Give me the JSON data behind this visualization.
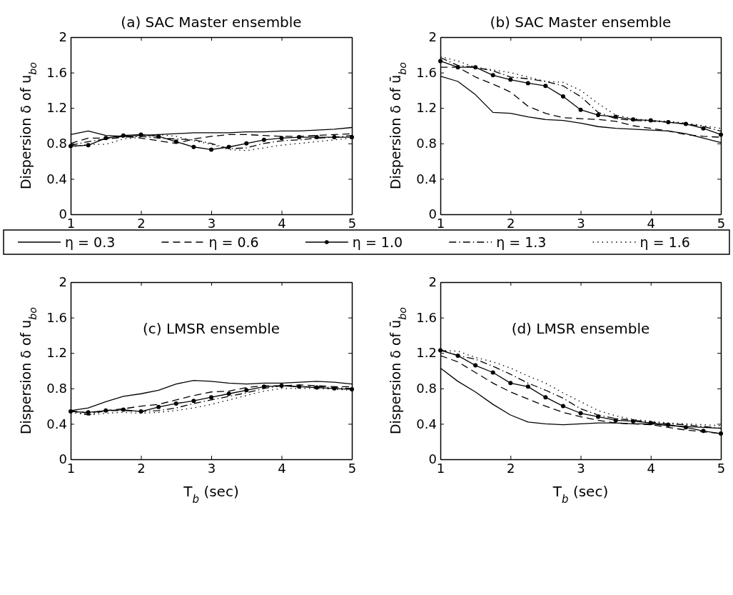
{
  "chart_data": [
    {
      "type": "line",
      "title": "(a) SAC Master ensemble",
      "ylabel": "Dispersion δ of u$_{bo}$",
      "x": [
        1,
        1.25,
        1.5,
        1.75,
        2,
        2.25,
        2.5,
        2.75,
        3,
        3.25,
        3.5,
        3.75,
        4,
        4.25,
        4.5,
        4.75,
        5
      ],
      "xlim": [
        1,
        5
      ],
      "xticks": [
        1,
        2,
        3,
        4,
        5
      ],
      "ylim": [
        0,
        2
      ],
      "yticks": [
        0,
        0.4,
        0.8,
        1.2,
        1.6,
        2
      ],
      "legend": "bottom",
      "grid": false,
      "series": [
        {
          "name": "η = 0.3",
          "color": "#000000",
          "line_style": "solid",
          "marker": "none",
          "values": [
            0.9,
            0.94,
            0.89,
            0.88,
            0.89,
            0.9,
            0.91,
            0.92,
            0.92,
            0.92,
            0.93,
            0.93,
            0.94,
            0.94,
            0.95,
            0.96,
            0.98
          ]
        },
        {
          "name": "η = 0.6",
          "color": "#000000",
          "line_style": "dashed",
          "marker": "none",
          "values": [
            0.8,
            0.86,
            0.86,
            0.88,
            0.86,
            0.83,
            0.8,
            0.85,
            0.88,
            0.9,
            0.9,
            0.89,
            0.88,
            0.88,
            0.89,
            0.9,
            0.91
          ]
        },
        {
          "name": "η = 1.0",
          "color": "#000000",
          "line_style": "solid",
          "marker": "circle",
          "values": [
            0.77,
            0.78,
            0.86,
            0.89,
            0.9,
            0.88,
            0.82,
            0.76,
            0.73,
            0.76,
            0.8,
            0.84,
            0.86,
            0.87,
            0.87,
            0.87,
            0.87
          ]
        },
        {
          "name": "η = 1.3",
          "color": "#000000",
          "line_style": "dashdot",
          "marker": "none",
          "values": [
            0.78,
            0.82,
            0.85,
            0.87,
            0.88,
            0.86,
            0.85,
            0.84,
            0.8,
            0.74,
            0.75,
            0.8,
            0.83,
            0.84,
            0.86,
            0.87,
            0.89
          ]
        },
        {
          "name": "η = 1.6",
          "color": "#000000",
          "line_style": "dotted",
          "marker": "none",
          "values": [
            0.76,
            0.79,
            0.79,
            0.85,
            0.87,
            0.9,
            0.88,
            0.83,
            0.79,
            0.73,
            0.72,
            0.75,
            0.78,
            0.8,
            0.82,
            0.84,
            0.86
          ]
        }
      ]
    },
    {
      "type": "line",
      "title": "(b) SAC Master ensemble",
      "ylabel": "Dispersion δ of ū$_{bo}$",
      "x": [
        1,
        1.25,
        1.5,
        1.75,
        2,
        2.25,
        2.5,
        2.75,
        3,
        3.25,
        3.5,
        3.75,
        4,
        4.25,
        4.5,
        4.75,
        5
      ],
      "xlim": [
        1,
        5
      ],
      "xticks": [
        1,
        2,
        3,
        4,
        5
      ],
      "ylim": [
        0,
        2
      ],
      "yticks": [
        0,
        0.4,
        0.8,
        1.2,
        1.6,
        2
      ],
      "grid": false,
      "series": [
        {
          "color": "#000000",
          "line_style": "solid",
          "marker": "none",
          "values": [
            1.56,
            1.5,
            1.35,
            1.15,
            1.14,
            1.1,
            1.07,
            1.06,
            1.03,
            0.99,
            0.97,
            0.96,
            0.95,
            0.94,
            0.91,
            0.86,
            0.81
          ]
        },
        {
          "color": "#000000",
          "line_style": "dashed",
          "marker": "none",
          "values": [
            1.66,
            1.66,
            1.55,
            1.47,
            1.38,
            1.22,
            1.14,
            1.09,
            1.08,
            1.07,
            1.05,
            1.0,
            0.97,
            0.94,
            0.9,
            0.88,
            0.87
          ]
        },
        {
          "color": "#000000",
          "line_style": "solid",
          "marker": "circle",
          "values": [
            1.73,
            1.66,
            1.66,
            1.57,
            1.52,
            1.48,
            1.45,
            1.33,
            1.18,
            1.12,
            1.1,
            1.07,
            1.06,
            1.04,
            1.02,
            0.97,
            0.9
          ]
        },
        {
          "color": "#000000",
          "line_style": "dashdot",
          "marker": "none",
          "values": [
            1.77,
            1.68,
            1.66,
            1.62,
            1.55,
            1.53,
            1.5,
            1.45,
            1.33,
            1.15,
            1.08,
            1.06,
            1.05,
            1.04,
            1.02,
            0.99,
            0.94
          ]
        },
        {
          "color": "#000000",
          "line_style": "dotted",
          "marker": "none",
          "values": [
            1.78,
            1.73,
            1.66,
            1.63,
            1.6,
            1.55,
            1.5,
            1.49,
            1.4,
            1.25,
            1.12,
            1.08,
            1.06,
            1.05,
            1.03,
            1.0,
            0.97
          ]
        }
      ]
    },
    {
      "type": "line",
      "title": "(c) LMSR ensemble",
      "ylabel": "Dispersion δ of u$_{bo}$",
      "xlabel": "T$_{b}$ (sec)",
      "x": [
        1,
        1.25,
        1.5,
        1.75,
        2,
        2.25,
        2.5,
        2.75,
        3,
        3.25,
        3.5,
        3.75,
        4,
        4.25,
        4.5,
        4.75,
        5
      ],
      "xlim": [
        1,
        5
      ],
      "xticks": [
        1,
        2,
        3,
        4,
        5
      ],
      "ylim": [
        0,
        2
      ],
      "yticks": [
        0,
        0.4,
        0.8,
        1.2,
        1.6,
        2
      ],
      "grid": false,
      "series": [
        {
          "color": "#000000",
          "line_style": "solid",
          "marker": "none",
          "values": [
            0.55,
            0.58,
            0.65,
            0.71,
            0.74,
            0.78,
            0.85,
            0.89,
            0.88,
            0.86,
            0.85,
            0.86,
            0.86,
            0.87,
            0.88,
            0.87,
            0.85
          ]
        },
        {
          "color": "#000000",
          "line_style": "dashed",
          "marker": "none",
          "values": [
            0.55,
            0.52,
            0.55,
            0.57,
            0.6,
            0.62,
            0.67,
            0.72,
            0.76,
            0.77,
            0.81,
            0.83,
            0.83,
            0.84,
            0.83,
            0.82,
            0.82
          ]
        },
        {
          "color": "#000000",
          "line_style": "solid",
          "marker": "circle",
          "values": [
            0.54,
            0.53,
            0.55,
            0.56,
            0.54,
            0.59,
            0.63,
            0.66,
            0.7,
            0.74,
            0.78,
            0.82,
            0.83,
            0.82,
            0.81,
            0.8,
            0.79
          ]
        },
        {
          "color": "#000000",
          "line_style": "dashdot",
          "marker": "none",
          "values": [
            0.55,
            0.5,
            0.55,
            0.55,
            0.54,
            0.55,
            0.58,
            0.63,
            0.67,
            0.71,
            0.75,
            0.8,
            0.83,
            0.82,
            0.82,
            0.81,
            0.8
          ]
        },
        {
          "color": "#000000",
          "line_style": "dotted",
          "marker": "none",
          "values": [
            0.53,
            0.5,
            0.52,
            0.53,
            0.52,
            0.53,
            0.55,
            0.58,
            0.62,
            0.67,
            0.72,
            0.77,
            0.8,
            0.8,
            0.8,
            0.79,
            0.78
          ]
        }
      ]
    },
    {
      "type": "line",
      "title": "(d) LMSR ensemble",
      "ylabel": "Dispersion δ of ū$_{bo}$",
      "xlabel": "T$_{b}$ (sec)",
      "x": [
        1,
        1.25,
        1.5,
        1.75,
        2,
        2.25,
        2.5,
        2.75,
        3,
        3.25,
        3.5,
        3.75,
        4,
        4.25,
        4.5,
        4.75,
        5
      ],
      "xlim": [
        1,
        5
      ],
      "xticks": [
        1,
        2,
        3,
        4,
        5
      ],
      "ylim": [
        0,
        2
      ],
      "yticks": [
        0,
        0.4,
        0.8,
        1.2,
        1.6,
        2
      ],
      "grid": false,
      "series": [
        {
          "color": "#000000",
          "line_style": "solid",
          "marker": "none",
          "values": [
            1.03,
            0.88,
            0.76,
            0.62,
            0.5,
            0.42,
            0.4,
            0.39,
            0.4,
            0.41,
            0.41,
            0.4,
            0.4,
            0.38,
            0.37,
            0.36,
            0.35
          ]
        },
        {
          "color": "#000000",
          "line_style": "dashed",
          "marker": "none",
          "values": [
            1.17,
            1.1,
            0.98,
            0.86,
            0.76,
            0.68,
            0.6,
            0.53,
            0.48,
            0.44,
            0.41,
            0.4,
            0.39,
            0.36,
            0.33,
            0.31,
            0.29
          ]
        },
        {
          "color": "#000000",
          "line_style": "solid",
          "marker": "circle",
          "values": [
            1.23,
            1.17,
            1.06,
            0.98,
            0.86,
            0.82,
            0.7,
            0.6,
            0.52,
            0.48,
            0.44,
            0.43,
            0.41,
            0.39,
            0.36,
            0.32,
            0.29
          ]
        },
        {
          "color": "#000000",
          "line_style": "dashdot",
          "marker": "none",
          "values": [
            1.24,
            1.17,
            1.13,
            1.05,
            0.96,
            0.86,
            0.78,
            0.69,
            0.57,
            0.5,
            0.46,
            0.44,
            0.42,
            0.4,
            0.39,
            0.37,
            0.35
          ]
        },
        {
          "color": "#000000",
          "line_style": "dotted",
          "marker": "none",
          "values": [
            1.23,
            1.22,
            1.15,
            1.1,
            1.03,
            0.94,
            0.86,
            0.75,
            0.65,
            0.55,
            0.49,
            0.45,
            0.43,
            0.41,
            0.4,
            0.39,
            0.38
          ]
        }
      ]
    }
  ]
}
